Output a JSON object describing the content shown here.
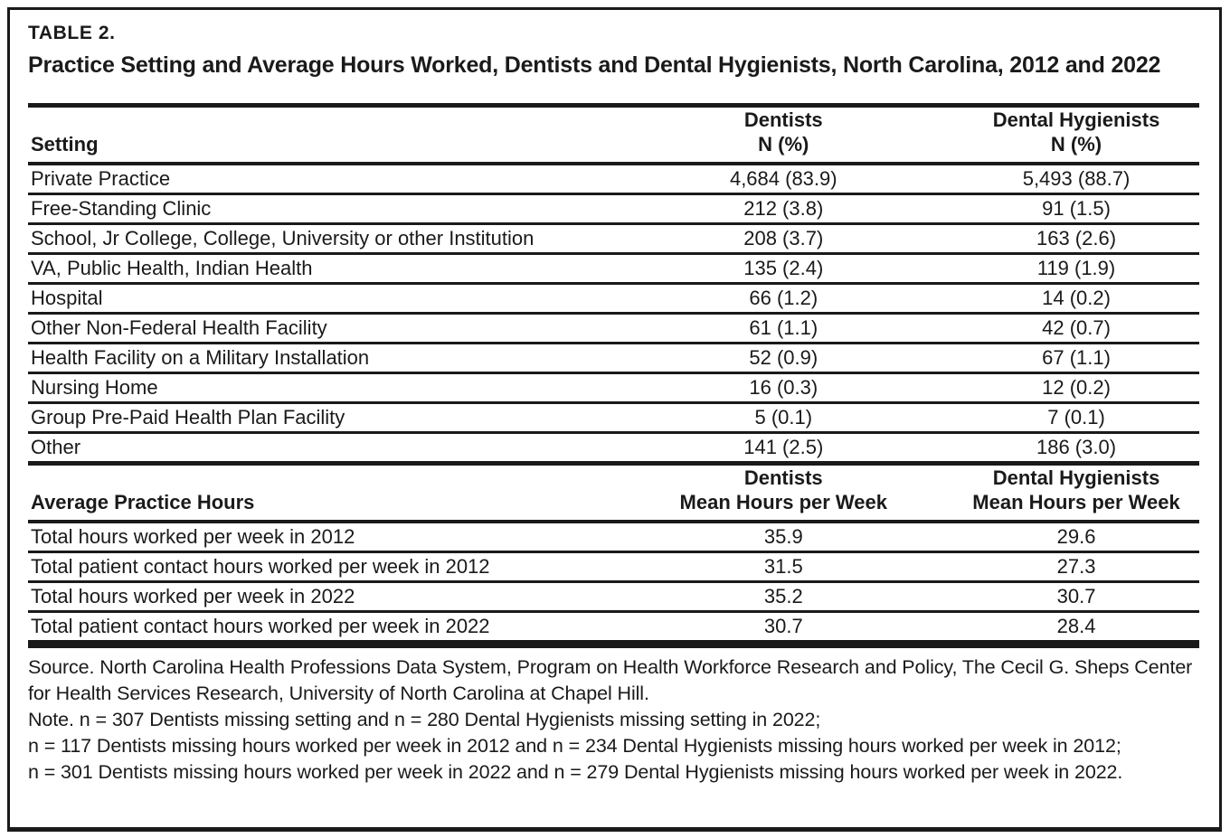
{
  "document": {
    "label": "TABLE 2.",
    "heading": "Practice Setting and Average Hours Worked, Dentists and Dental Hygienists, North Carolina, 2012 and 2022"
  },
  "settings_table": {
    "headers": {
      "setting": "Setting",
      "dentists_line1": "Dentists",
      "dentists_line2": "N (%)",
      "hygienists_line1": "Dental Hygienists",
      "hygienists_line2": "N (%)"
    },
    "rows": [
      {
        "setting": "Private Practice",
        "dentists": "4,684 (83.9)",
        "hygienists": "5,493 (88.7)"
      },
      {
        "setting": "Free-Standing Clinic",
        "dentists": "212 (3.8)",
        "hygienists": "91 (1.5)"
      },
      {
        "setting": "School, Jr College, College, University or other Institution",
        "dentists": "208 (3.7)",
        "hygienists": "163 (2.6)"
      },
      {
        "setting": "VA, Public Health, Indian Health",
        "dentists": "135 (2.4)",
        "hygienists": "119 (1.9)"
      },
      {
        "setting": "Hospital",
        "dentists": "66 (1.2)",
        "hygienists": "14 (0.2)"
      },
      {
        "setting": "Other Non-Federal Health Facility",
        "dentists": "61 (1.1)",
        "hygienists": "42 (0.7)"
      },
      {
        "setting": "Health Facility on a Military Installation",
        "dentists": "52 (0.9)",
        "hygienists": "67 (1.1)"
      },
      {
        "setting": "Nursing Home",
        "dentists": "16 (0.3)",
        "hygienists": "12 (0.2)"
      },
      {
        "setting": "Group Pre-Paid Health Plan Facility",
        "dentists": "5 (0.1)",
        "hygienists": "7 (0.1)"
      },
      {
        "setting": "Other",
        "dentists": "141 (2.5)",
        "hygienists": "186 (3.0)"
      }
    ]
  },
  "hours_table": {
    "headers": {
      "label": "Average Practice Hours",
      "dentists_line1": "Dentists",
      "dentists_line2": "Mean Hours per Week",
      "hygienists_line1": "Dental Hygienists",
      "hygienists_line2": "Mean Hours per Week"
    },
    "rows": [
      {
        "label": "Total hours worked per week in 2012",
        "dentists": "35.9",
        "hygienists": "29.6"
      },
      {
        "label": "Total patient contact hours worked per week in 2012",
        "dentists": "31.5",
        "hygienists": "27.3"
      },
      {
        "label": "Total hours worked per week in 2022",
        "dentists": "35.2",
        "hygienists": "30.7"
      },
      {
        "label": "Total patient contact hours worked per week in 2022",
        "dentists": "30.7",
        "hygienists": "28.4"
      }
    ]
  },
  "footnotes": {
    "source": "Source. North Carolina Health Professions Data System, Program on Health Workforce Research and Policy, The Cecil G. Sheps Center for Health Services Research, University of North Carolina at Chapel Hill.",
    "notes": [
      "Note. n = 307 Dentists missing setting and n = 280 Dental Hygienists missing setting in 2022;",
      "n = 117 Dentists missing hours worked per week in 2012 and n = 234 Dental Hygienists missing hours worked per week in 2012;",
      "n = 301 Dentists missing hours worked per week in 2022 and n = 279 Dental Hygienists missing hours worked per week in 2022."
    ]
  },
  "colors": {
    "text": "#1a1a1a",
    "rule": "#1a1a1a",
    "background": "#ffffff"
  }
}
